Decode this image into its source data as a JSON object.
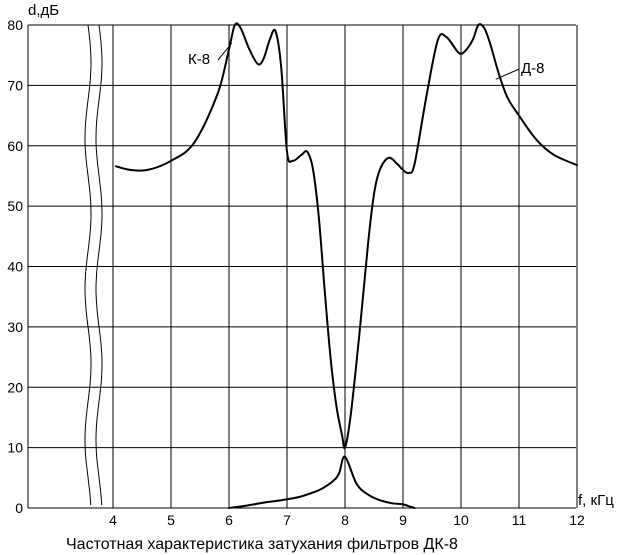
{
  "chart_data": {
    "type": "line",
    "title": "Частотная характеристика затухания фильтров ДК-8",
    "xlabel": "f, кГц",
    "ylabel": "d,дБ",
    "xlim": [
      3.75,
      12
    ],
    "ylim": [
      0,
      80
    ],
    "axis_break": "between 0 and 4 on the f axis",
    "grid": true,
    "x_ticks": [
      "4",
      "5",
      "6",
      "7",
      "8",
      "9",
      "10",
      "11",
      "12"
    ],
    "y_ticks": [
      "0",
      "10",
      "20",
      "30",
      "40",
      "50",
      "60",
      "70",
      "80"
    ],
    "series": [
      {
        "name": "К-8",
        "x": [
          6.0,
          6.3,
          6.6,
          6.9,
          7.2,
          7.4,
          7.6,
          7.8,
          7.9,
          8.0,
          8.2,
          8.4,
          8.6,
          8.8,
          9.0,
          9.1,
          9.2
        ],
        "y": [
          0,
          0.4,
          0.9,
          1.3,
          1.8,
          2.4,
          3.2,
          4.5,
          5.8,
          8.5,
          4.0,
          2.2,
          1.3,
          0.8,
          0.6,
          0.3,
          0
        ]
      },
      {
        "name": "Д-8",
        "x": [
          4.05,
          4.3,
          4.6,
          5.0,
          5.4,
          5.8,
          6.0,
          6.1,
          6.2,
          6.35,
          6.5,
          6.6,
          6.7,
          6.8,
          6.9,
          7.0,
          7.1,
          7.25,
          7.35,
          7.45,
          7.55,
          7.65,
          7.75,
          7.85,
          7.95,
          8.0,
          8.1,
          8.25,
          8.4,
          8.5,
          8.6,
          8.75,
          8.9,
          9.0,
          9.1,
          9.2,
          9.4,
          9.6,
          9.75,
          9.95,
          10.05,
          10.2,
          10.3,
          10.4,
          10.5,
          10.65,
          10.8,
          11.0,
          11.3,
          11.6,
          12.0
        ],
        "y": [
          56.6,
          56.0,
          56.0,
          57.5,
          60.5,
          68.5,
          76.0,
          80.0,
          79.5,
          76.0,
          73.5,
          74.5,
          77.5,
          79.0,
          73.0,
          59.0,
          57.5,
          58.5,
          59.0,
          56.0,
          48.0,
          36.0,
          25.0,
          17.0,
          12.0,
          10.0,
          15.5,
          29.0,
          44.0,
          52.0,
          56.0,
          58.0,
          57.0,
          56.0,
          55.5,
          57.0,
          68.0,
          77.5,
          78.0,
          75.5,
          75.5,
          77.5,
          80.0,
          79.5,
          77.0,
          72.0,
          68.0,
          65.0,
          61.0,
          58.5,
          56.8
        ]
      }
    ],
    "annotations": [
      {
        "text": "К-8",
        "points_to": {
          "x": 6.05,
          "y": 77
        }
      },
      {
        "text": "Д-8",
        "points_to": {
          "x": 10.6,
          "y": 71
        }
      }
    ]
  }
}
